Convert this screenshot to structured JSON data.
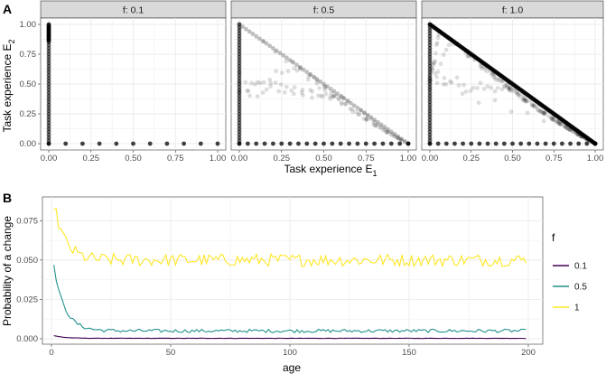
{
  "panel_a": {
    "tag": "A",
    "xlabel_main": "Task experience E",
    "xlabel_sub": "1",
    "ylabel_main": "Task experience E",
    "ylabel_sub": "2",
    "x_ticks": [
      "0.00",
      "0.25",
      "0.50",
      "0.75",
      "1.00"
    ],
    "y_ticks": [
      "0.00",
      "0.25",
      "0.50",
      "0.75",
      "1.00"
    ]
  },
  "panel_b": {
    "tag": "B",
    "xlabel": "age",
    "ylabel": "Probability of a change",
    "x_ticks": [
      "0",
      "50",
      "100",
      "150",
      "200"
    ],
    "y_ticks": [
      "0.000",
      "0.025",
      "0.050",
      "0.075"
    ],
    "legend_title": "f"
  },
  "colors": {
    "facet_strip": "#d9d9d9",
    "grid": "#ebebeb",
    "points": "#000000",
    "f01": "#440154",
    "f05": "#21918c",
    "f10": "#fde725"
  },
  "chart_data": [
    {
      "type": "scatter",
      "facets": [
        {
          "label": "f: 0.1",
          "f": 0.1
        },
        {
          "label": "f: 0.5",
          "f": 0.5
        },
        {
          "label": "f: 1.0",
          "f": 1.0
        }
      ],
      "xlabel": "Task experience E1",
      "ylabel": "Task experience E2",
      "xlim": [
        0,
        1
      ],
      "ylim": [
        0,
        1
      ],
      "grid": true,
      "description_of_points": "trajectories of task experience on the simplex E1 + E2 <= 1; f=0.1 points lie only on the axes, higher f fill the triangle"
    },
    {
      "type": "line",
      "xlabel": "age",
      "ylabel": "Probability of a change",
      "xlim": [
        0,
        200
      ],
      "ylim": [
        0,
        0.09
      ],
      "grid": true,
      "legend": "right",
      "legend_title": "f",
      "series": [
        {
          "name": "0.1",
          "color": "#440154",
          "start": 0.002,
          "plateau": 0.0003
        },
        {
          "name": "0.5",
          "color": "#21918c",
          "start": 0.046,
          "plateau": 0.005
        },
        {
          "name": "1",
          "color": "#fde725",
          "start": 0.086,
          "plateau": 0.05
        }
      ]
    }
  ]
}
